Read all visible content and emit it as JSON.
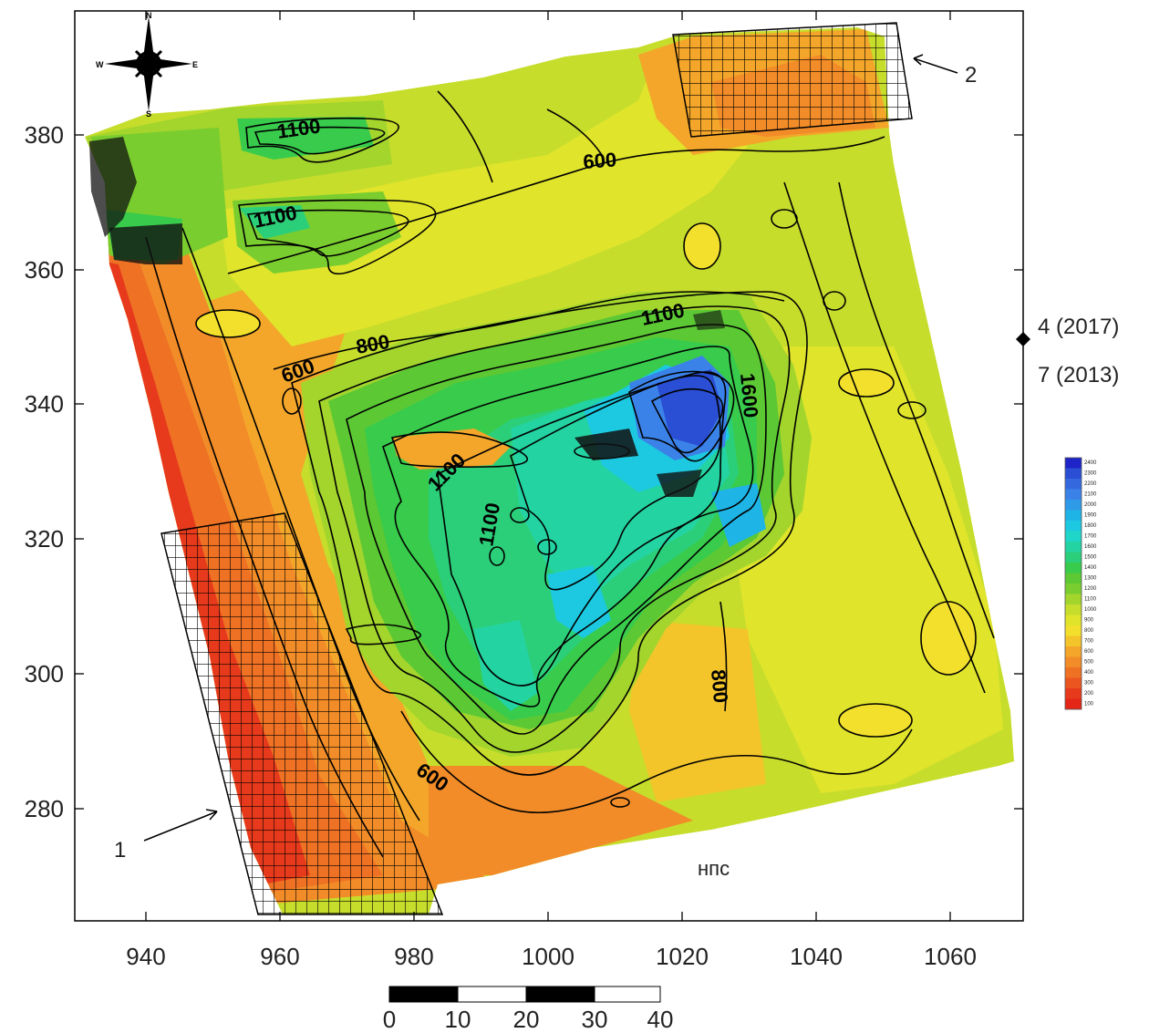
{
  "map": {
    "x_ticks": [
      "940",
      "960",
      "980",
      "1000",
      "1020",
      "1040",
      "1060"
    ],
    "y_ticks": [
      "380",
      "360",
      "340",
      "320",
      "300",
      "280"
    ],
    "contour_labels": [
      "1100",
      "1100",
      "600",
      "800",
      "600",
      "1100",
      "1600",
      "1100",
      "1100",
      "600",
      "800"
    ],
    "site_label_top": "4 (2017)",
    "site_label_bottom": "7 (2013)",
    "block1_label": "1",
    "block2_label": "2",
    "station_label": "нпс",
    "compass": {
      "north": "N",
      "south": "S",
      "east": "E",
      "west": "W"
    },
    "scale_bar_labels": [
      "0",
      "10",
      "20",
      "30",
      "40"
    ],
    "legend": {
      "values": [
        "2400",
        "2300",
        "2200",
        "2100",
        "2000",
        "1900",
        "1800",
        "1700",
        "1600",
        "1500",
        "1400",
        "1300",
        "1200",
        "1100",
        "1000",
        "900",
        "800",
        "700",
        "600",
        "500",
        "400",
        "300",
        "200",
        "100"
      ],
      "colors": [
        "#1f24c9",
        "#2a4ed4",
        "#3368df",
        "#3b82e8",
        "#2f9ae8",
        "#1eb4e6",
        "#1cc9e0",
        "#20d6c8",
        "#24d3a2",
        "#2ccf79",
        "#38cb4c",
        "#5cc834",
        "#7acd2f",
        "#a3d52d",
        "#c6dd2c",
        "#e0e42b",
        "#f3e02c",
        "#f4c52b",
        "#f3a62a",
        "#f28c28",
        "#ee7124",
        "#ea5520",
        "#e73a1c",
        "#e32617"
      ]
    }
  }
}
